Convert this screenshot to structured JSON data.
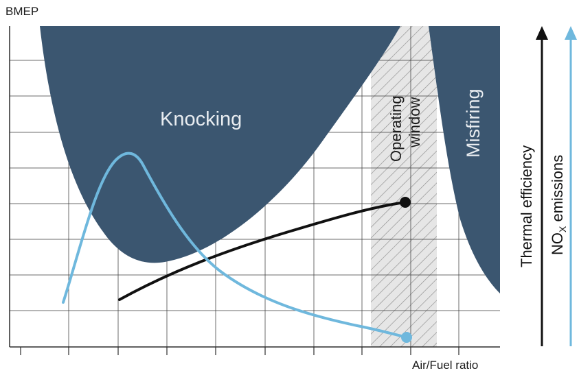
{
  "diagram": {
    "y_axis_label": "BMEP",
    "x_axis_label": "Air/Fuel ratio",
    "regions": {
      "knocking": "Knocking",
      "misfiring": "Misfiring",
      "operating_window_line1": "Operating",
      "operating_window_line2": "window"
    },
    "side_axes": {
      "thermal_efficiency": "Thermal efficiency",
      "nox_prefix": "NO",
      "nox_subscript": "X",
      "nox_suffix": " emissions"
    },
    "colors": {
      "region_fill": "#3b5670",
      "grid": "#3a3a3a",
      "thermal_curve": "#111111",
      "nox_curve": "#6fb8dd",
      "window_fill": "#e6e6e6",
      "window_hatch": "#8c8c8c",
      "region_text": "#e8ecf0"
    }
  }
}
